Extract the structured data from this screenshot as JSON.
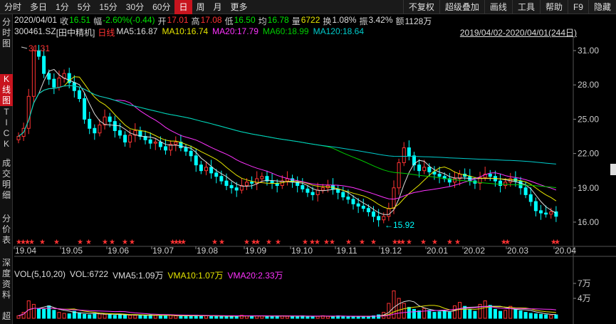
{
  "tabs": [
    {
      "label": "分时",
      "active": false
    },
    {
      "label": "多日",
      "active": false
    },
    {
      "label": "1分",
      "active": false
    },
    {
      "label": "5分",
      "active": false
    },
    {
      "label": "15分",
      "active": false
    },
    {
      "label": "30分",
      "active": false
    },
    {
      "label": "60分",
      "active": false
    },
    {
      "label": "日",
      "active": true
    },
    {
      "label": "周",
      "active": false
    },
    {
      "label": "月",
      "active": false
    },
    {
      "label": "更多",
      "active": false
    }
  ],
  "tools": [
    "不复权",
    "超级叠加",
    "画线",
    "工具",
    "帮助",
    "F9",
    "隐藏"
  ],
  "sidebar": {
    "fenshitu": "分时图",
    "kxiantu": "K线图",
    "tick": "TICK",
    "chengjiao": "成交明细",
    "fenjia": "分价表",
    "shendu": "深度资料",
    "chao": "超"
  },
  "quote": {
    "date": "2020/04/01",
    "close_label": "收",
    "close": "16.51",
    "change_label": "幅",
    "change": "-2.60%(-0.44)",
    "open_label": "开",
    "open": "17.01",
    "high_label": "高",
    "high": "17.08",
    "low_label": "低",
    "low": "16.50",
    "avg_label": "均",
    "avg": "16.78",
    "vol_label": "量",
    "vol": "6722",
    "turnover_label": "换",
    "turnover": "1.08%",
    "amp_label": "振",
    "amp": "3.42%",
    "amount_label": "额",
    "amount": "1128万"
  },
  "ma": {
    "code": "300461.SZ",
    "name": "[田中精机]",
    "line": "日线",
    "ma5": "MA5:16.87",
    "ma10": "MA10:16.74",
    "ma20": "MA20:17.79",
    "ma60": "MA60:18.99",
    "ma120": "MA120:18.64"
  },
  "range": "2019/04/02-2020/04/01(244日)",
  "volume": {
    "label": "VOL(5,10,20)",
    "vol": "VOL:6722",
    "vma5": "VMA5:1.09万",
    "vma10": "VMA10:1.07万",
    "vma20": "VMA20:2.33万",
    "axis": [
      "7万",
      "4万"
    ]
  },
  "colors": {
    "ma5": "#dddddd",
    "ma10": "#e6e600",
    "ma20": "#ff33ff",
    "ma60": "#00cc00",
    "ma120": "#00cccc",
    "up": "#ff3333",
    "down": "#00ffff"
  },
  "chart_data": {
    "type": "candlestick",
    "y_ticks": [
      31.0,
      28.0,
      25.0,
      22.0,
      19.0,
      16.0
    ],
    "ylim": [
      15.0,
      32.0
    ],
    "x_labels": [
      "19.04",
      "19.05",
      "19.06",
      "19.07",
      "19.08",
      "19.09",
      "19.10",
      "19.11",
      "19.12",
      "20.01",
      "20.02",
      "20.03",
      "20.04"
    ],
    "annotations": {
      "max": "31.31",
      "min": "15.92"
    },
    "price_path": [
      23.5,
      24.2,
      27.0,
      31.0,
      30.5,
      29.0,
      28.5,
      27.8,
      28.6,
      29.0,
      28.2,
      27.5,
      26.8,
      25.0,
      24.2,
      23.8,
      24.5,
      25.2,
      24.8,
      24.0,
      23.6,
      23.0,
      23.6,
      24.0,
      23.5,
      23.2,
      22.9,
      23.0,
      22.6,
      22.3,
      22.8,
      23.0,
      22.5,
      22.2,
      21.8,
      21.0,
      20.5,
      20.8,
      20.3,
      20.0,
      19.6,
      19.2,
      19.0,
      18.8,
      19.2,
      19.5,
      19.4,
      19.8,
      20.0,
      19.6,
      19.4,
      19.2,
      19.6,
      19.8,
      19.5,
      19.2,
      18.9,
      18.6,
      18.4,
      18.8,
      19.0,
      19.2,
      18.9,
      18.6,
      18.2,
      18.0,
      17.6,
      17.4,
      17.2,
      16.9,
      16.5,
      16.2,
      16.5,
      17.2,
      19.0,
      21.2,
      22.5,
      21.8,
      21.0,
      20.5,
      20.8,
      20.4,
      20.2,
      20.0,
      19.8,
      19.5,
      19.8,
      20.2,
      20.0,
      19.6,
      19.4,
      19.9,
      20.2,
      20.0,
      19.6,
      19.2,
      19.5,
      19.8,
      19.6,
      19.0,
      18.4,
      17.8,
      17.0,
      16.8,
      16.7,
      16.9,
      16.51
    ],
    "vol_path": [
      0.5,
      1.2,
      3.5,
      2.8,
      2.0,
      1.8,
      2.5,
      1.6,
      1.2,
      1.0,
      0.9,
      1.4,
      1.1,
      0.8,
      0.7,
      1.0,
      0.9,
      0.8,
      0.7,
      0.6,
      0.8,
      0.7,
      0.6,
      0.6,
      0.5,
      0.6,
      0.7,
      0.6,
      0.5,
      0.5,
      0.6,
      0.5,
      0.5,
      0.4,
      0.5,
      0.6,
      0.5,
      0.5,
      0.4,
      0.4,
      0.5,
      0.4,
      0.4,
      0.5,
      0.6,
      0.5,
      0.4,
      0.5,
      0.5,
      0.4,
      0.4,
      0.5,
      0.5,
      0.4,
      0.4,
      0.4,
      0.5,
      0.4,
      0.4,
      0.4,
      0.5,
      0.4,
      0.4,
      0.5,
      0.4,
      0.4,
      0.3,
      0.4,
      0.4,
      0.4,
      0.5,
      0.7,
      1.2,
      3.0,
      5.5,
      4.0,
      3.0,
      2.2,
      1.8,
      1.5,
      2.0,
      1.6,
      1.2,
      1.3,
      1.4,
      1.2,
      2.5,
      3.2,
      2.4,
      1.8,
      1.4,
      2.8,
      3.5,
      2.6,
      1.8,
      1.4,
      1.6,
      2.4,
      1.8,
      1.5,
      1.2,
      1.0,
      0.9,
      0.8,
      0.7,
      0.6,
      0.7
    ]
  }
}
